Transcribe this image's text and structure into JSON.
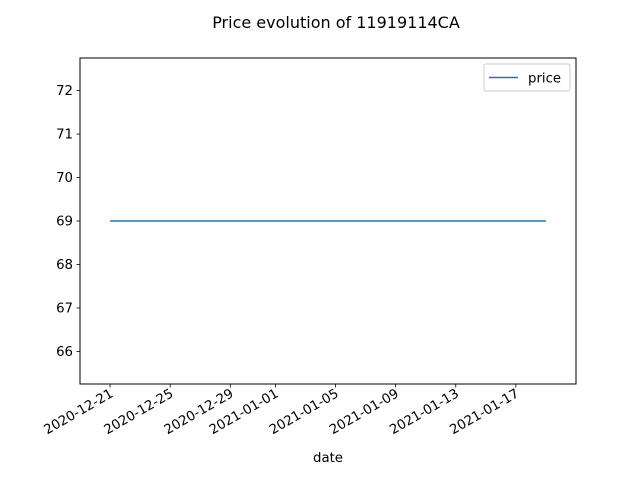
{
  "chart_data": {
    "type": "line",
    "title": "Price evolution of 11919114CA",
    "xlabel": "date",
    "ylabel": "",
    "x": [
      "2020-12-21",
      "2021-01-19"
    ],
    "series": [
      {
        "name": "price",
        "values": [
          69,
          69
        ],
        "color": "#1f77b4"
      }
    ],
    "xlim": [
      "2020-12-19",
      "2021-01-21"
    ],
    "ylim": [
      65.25,
      72.75
    ],
    "x_ticks": [
      "2020-12-21",
      "2020-12-25",
      "2020-12-29",
      "2021-01-01",
      "2021-01-05",
      "2021-01-09",
      "2021-01-13",
      "2021-01-17"
    ],
    "y_ticks": [
      66,
      67,
      68,
      69,
      70,
      71,
      72
    ],
    "grid": false,
    "legend_position": "top-right"
  }
}
